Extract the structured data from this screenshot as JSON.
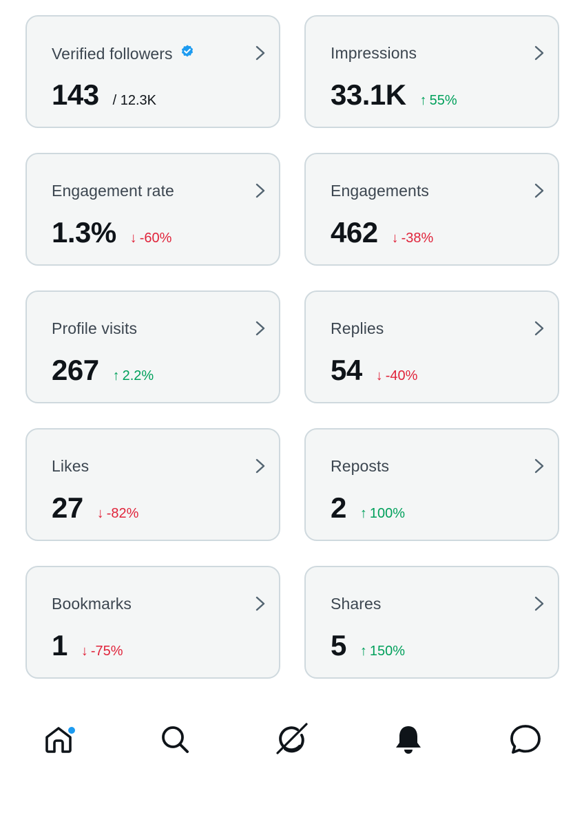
{
  "cards": [
    {
      "title": "Verified followers",
      "verified": true,
      "value": "143",
      "total": "/ 12.3K"
    },
    {
      "title": "Impressions",
      "value": "33.1K",
      "arrow": "↑",
      "change": "55%",
      "direction": "up"
    },
    {
      "title": "Engagement rate",
      "value": "1.3%",
      "arrow": "↓",
      "change": "-60%",
      "direction": "down"
    },
    {
      "title": "Engagements",
      "value": "462",
      "arrow": "↓",
      "change": "-38%",
      "direction": "down"
    },
    {
      "title": "Profile visits",
      "value": "267",
      "arrow": "↑",
      "change": "2.2%",
      "direction": "up"
    },
    {
      "title": "Replies",
      "value": "54",
      "arrow": "↓",
      "change": "-40%",
      "direction": "down"
    },
    {
      "title": "Likes",
      "value": "27",
      "arrow": "↓",
      "change": "-82%",
      "direction": "down"
    },
    {
      "title": "Reposts",
      "value": "2",
      "arrow": "↑",
      "change": "100%",
      "direction": "up"
    },
    {
      "title": "Bookmarks",
      "value": "1",
      "arrow": "↓",
      "change": "-75%",
      "direction": "down"
    },
    {
      "title": "Shares",
      "value": "5",
      "arrow": "↑",
      "change": "150%",
      "direction": "up"
    }
  ],
  "nav": {
    "items": [
      "home-icon",
      "search-icon",
      "grok-icon",
      "notifications-bell-icon",
      "messages-icon"
    ],
    "home_has_badge": true
  },
  "colors": {
    "up": "#00a05b",
    "down": "#e0243b",
    "accent": "#1d9bf0",
    "card_bg": "#f4f6f6",
    "card_border": "#cfd9de"
  }
}
